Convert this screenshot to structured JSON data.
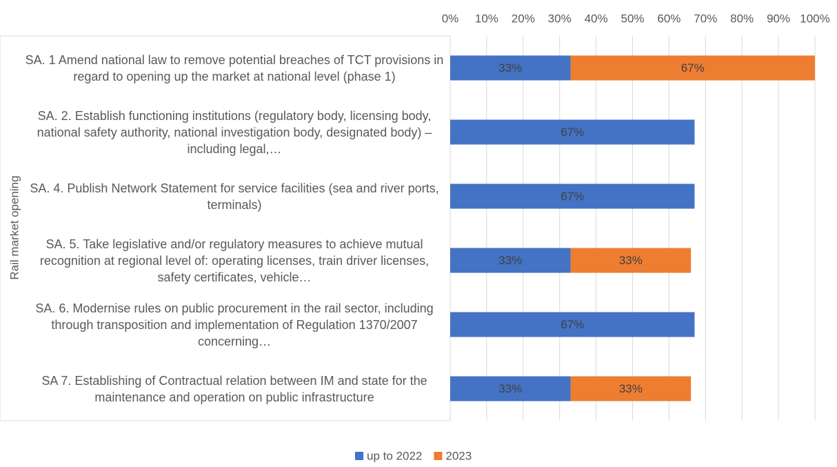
{
  "chart_data": {
    "type": "stacked_bar_horizontal",
    "y_label": "Rail market opening",
    "categories": [
      "SA. 1 Amend national law to remove potential breaches of TCT provisions in regard to opening up the market at national level (phase 1)",
      "SA. 2. Establish functioning institutions (regulatory body, licensing body, national safety authority, national investigation body, designated body) – including legal,…",
      "SA. 4. Publish Network Statement for service facilities (sea and river ports, terminals)",
      "SA. 5. Take legislative and/or regulatory measures to achieve mutual recognition at regional level of: operating licenses, train driver licenses, safety certificates, vehicle…",
      "SA. 6. Modernise rules on public procurement in the rail sector, including through transposition and implementation of Regulation 1370/2007 concerning…",
      "SA 7. Establishing of Contractual relation between IM and state for the maintenance and operation on public infrastructure"
    ],
    "series": [
      {
        "name": "up to 2022",
        "color": "#4472c4",
        "values": [
          33,
          67,
          67,
          33,
          67,
          33
        ],
        "value_labels": [
          "33%",
          "67%",
          "67%",
          "33%",
          "67%",
          "33%"
        ]
      },
      {
        "name": "2023",
        "color": "#ed7d31",
        "values": [
          67,
          null,
          null,
          33,
          null,
          33
        ],
        "value_labels": [
          "67%",
          null,
          null,
          "33%",
          null,
          "33%"
        ]
      }
    ],
    "xlim": [
      0,
      100
    ],
    "xticks": [
      {
        "value": 0,
        "label": "0%"
      },
      {
        "value": 10,
        "label": "10%"
      },
      {
        "value": 20,
        "label": "20%"
      },
      {
        "value": 30,
        "label": "30%"
      },
      {
        "value": 40,
        "label": "40%"
      },
      {
        "value": 50,
        "label": "50%"
      },
      {
        "value": 60,
        "label": "60%"
      },
      {
        "value": 70,
        "label": "70%"
      },
      {
        "value": 80,
        "label": "80%"
      },
      {
        "value": 90,
        "label": "90%"
      },
      {
        "value": 100,
        "label": "100%"
      }
    ],
    "grid": true,
    "legend": "bottom"
  }
}
